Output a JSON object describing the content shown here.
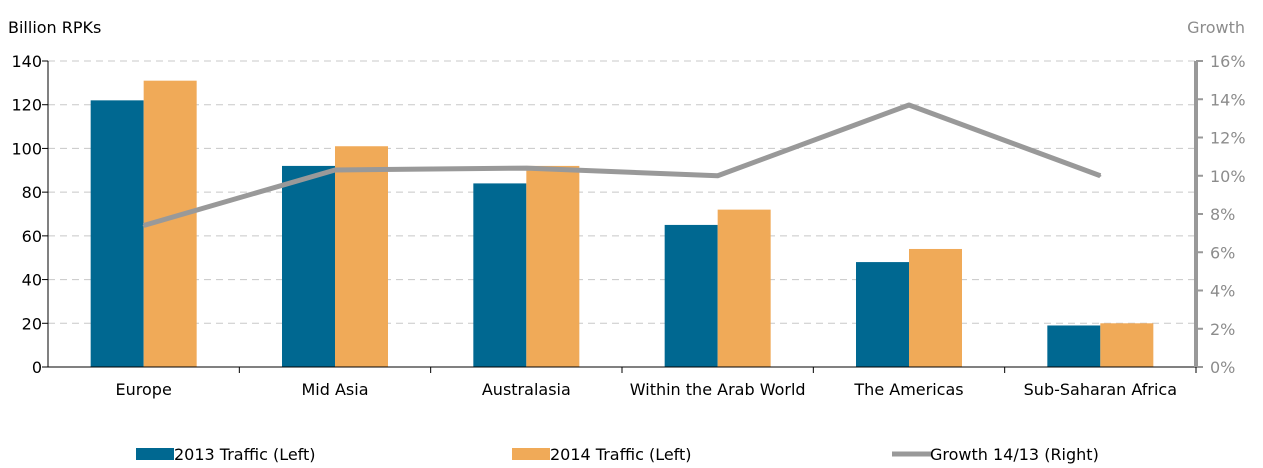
{
  "chart_data": {
    "type": "bar",
    "categories": [
      "Europe",
      "Mid Asia",
      "Australasia",
      "Within the Arab World",
      "The Americas",
      "Sub-Saharan Africa"
    ],
    "series": [
      {
        "name": "2013 Traffic (Left)",
        "kind": "bar",
        "axis": "left",
        "color": "#006891",
        "values": [
          122,
          92,
          84,
          65,
          48,
          19
        ]
      },
      {
        "name": "2014 Traffic (Left)",
        "kind": "bar",
        "axis": "left",
        "color": "#f0aa58",
        "values": [
          131,
          101,
          92,
          72,
          54,
          20
        ]
      },
      {
        "name": "Growth 14/13 (Right)",
        "kind": "line",
        "axis": "right",
        "color": "#999999",
        "values": [
          7.4,
          10.3,
          10.4,
          10.0,
          13.7,
          10.0
        ]
      }
    ],
    "ylabel": "Billion RPKs",
    "y2label": "Growth",
    "ylim": [
      0,
      140
    ],
    "yticks": [
      "0",
      "20",
      "40",
      "60",
      "80",
      "100",
      "120",
      "140"
    ],
    "y2lim": [
      0,
      16
    ],
    "y2ticks": [
      "0%",
      "2%",
      "4%",
      "6%",
      "8%",
      "10%",
      "12%",
      "14%",
      "16%"
    ],
    "grid": true,
    "grid_style": "dashed",
    "legend_position": "bottom"
  }
}
